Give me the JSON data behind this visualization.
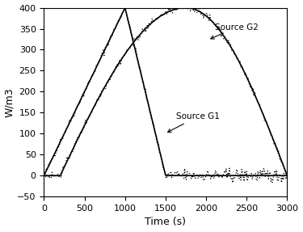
{
  "title": "",
  "xlabel": "Time (s)",
  "ylabel": "W/m3",
  "xlim": [
    0,
    3000
  ],
  "ylim": [
    -50,
    400
  ],
  "xticks": [
    0,
    500,
    1000,
    1500,
    2000,
    2500,
    3000
  ],
  "yticks": [
    -50,
    0,
    50,
    100,
    150,
    200,
    250,
    300,
    350,
    400
  ],
  "line_color": "black",
  "noise_seed": 42,
  "g1_peak": 400,
  "g1_peak_time": 1000,
  "g1_fall_end": 1500,
  "g2_peak": 400,
  "g2_peak_time": 1750,
  "g2_rise_start": 200,
  "g2_fall_end": 3000,
  "noise_scale_main": 4.0,
  "noise_scale_zero": 8.0,
  "n_points": 300,
  "figsize": [
    3.75,
    2.87
  ],
  "dpi": 100
}
